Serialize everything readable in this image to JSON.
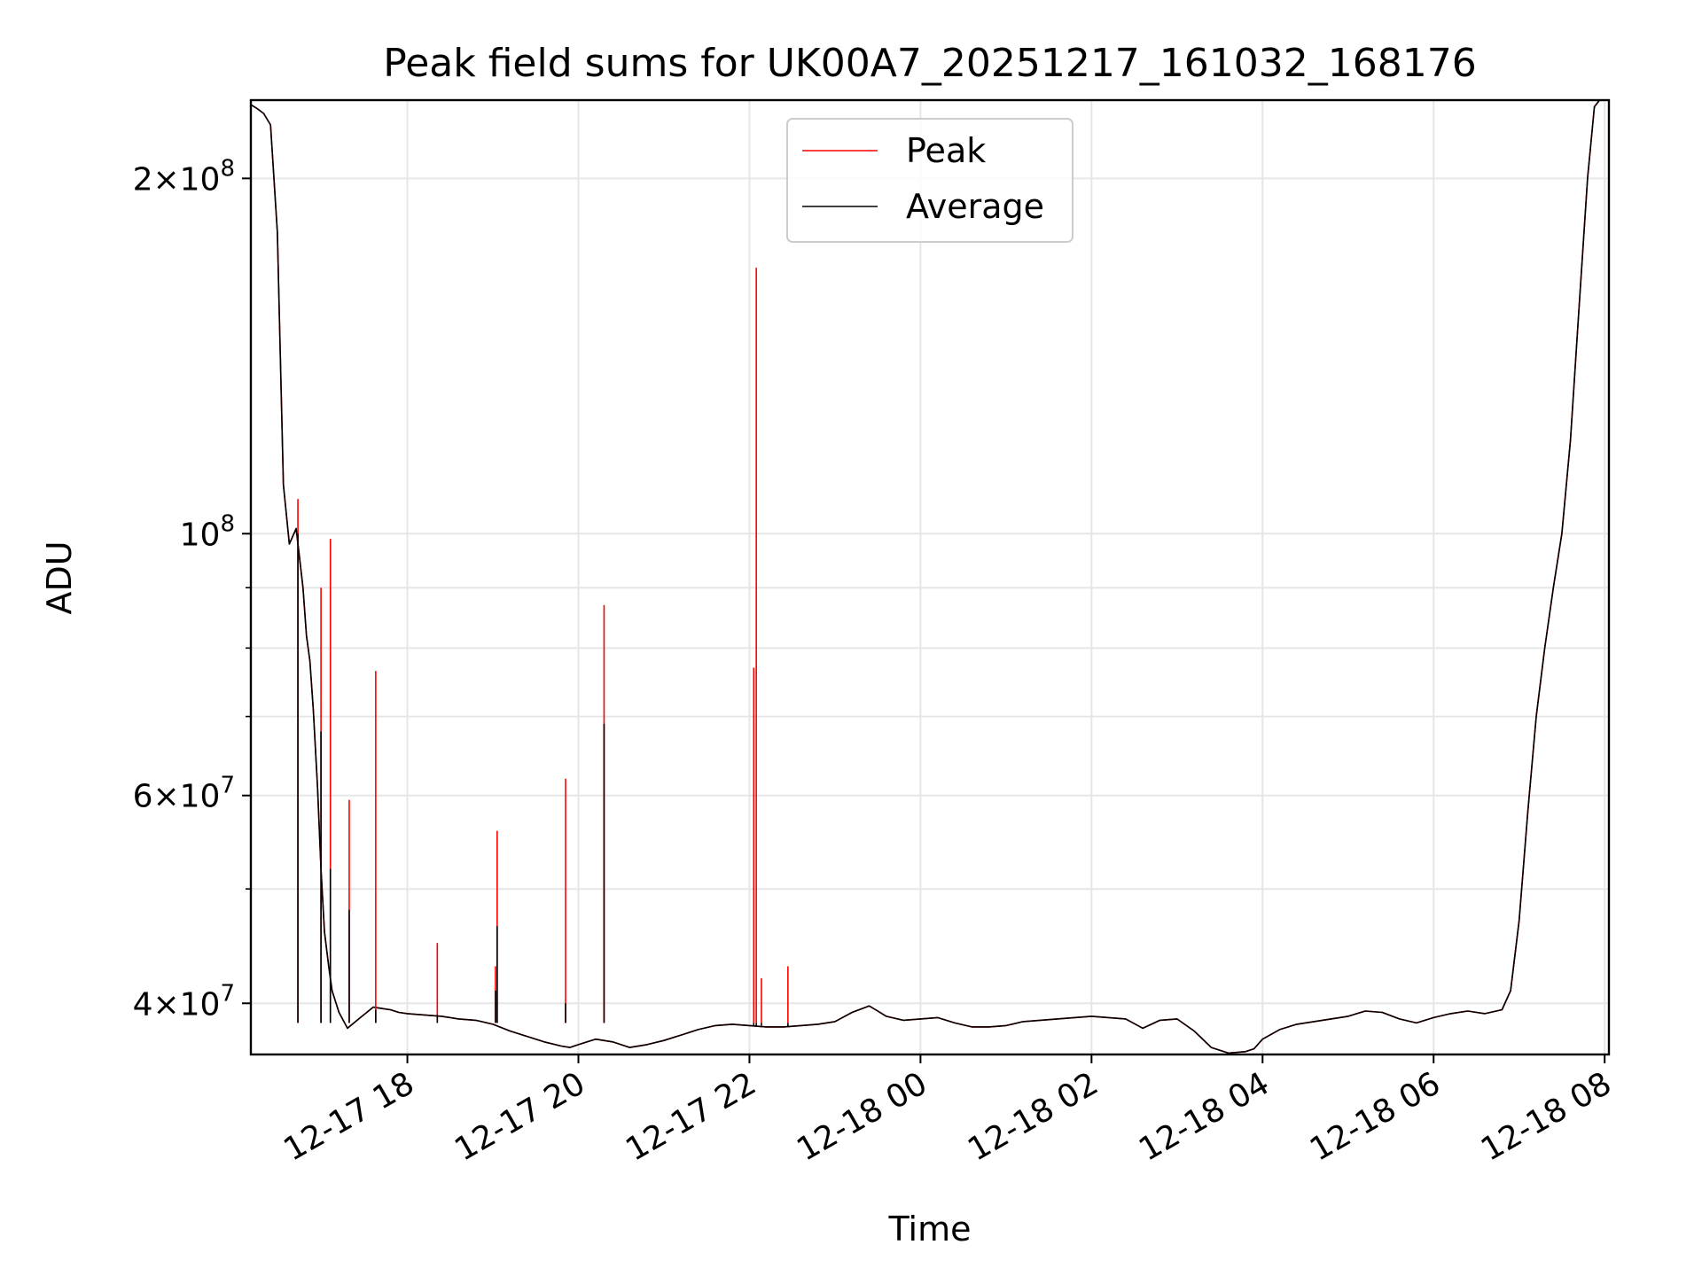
{
  "chart_data": {
    "type": "line",
    "title": "Peak field sums for UK00A7_20251217_161032_168176",
    "xlabel": "Time",
    "ylabel": "ADU",
    "yscale": "log",
    "ylim": [
      36200000,
      233000000
    ],
    "xlim_hours": [
      16.17,
      32.05
    ],
    "grid": true,
    "legend_location": "upper center",
    "x_ticks": [
      {
        "hour": 18,
        "label": "12-17 18"
      },
      {
        "hour": 20,
        "label": "12-17 20"
      },
      {
        "hour": 22,
        "label": "12-17 22"
      },
      {
        "hour": 24,
        "label": "12-18 00"
      },
      {
        "hour": 26,
        "label": "12-18 02"
      },
      {
        "hour": 28,
        "label": "12-18 04"
      },
      {
        "hour": 30,
        "label": "12-18 06"
      },
      {
        "hour": 32,
        "label": "12-18 08"
      }
    ],
    "y_ticks": [
      {
        "value": 40000000,
        "mantissa": "4×10",
        "exponent": "7"
      },
      {
        "value": 60000000,
        "mantissa": "6×10",
        "exponent": "7"
      },
      {
        "value": 100000000,
        "mantissa": "10",
        "exponent": "8"
      },
      {
        "value": 200000000,
        "mantissa": "2×10",
        "exponent": "8"
      }
    ],
    "y_minor_ticks": [
      50000000,
      70000000,
      80000000,
      90000000
    ],
    "series": [
      {
        "name": "Peak",
        "color": "#ff0000",
        "x_hours": [
          16.17,
          16.25,
          16.32,
          16.4,
          16.48,
          16.55,
          16.62,
          16.7,
          16.78,
          16.82,
          16.86,
          16.9,
          16.95,
          16.99,
          17.03,
          17.08,
          17.12,
          17.2,
          17.3,
          17.45,
          17.6,
          17.7,
          17.8,
          17.9,
          18.0,
          18.2,
          18.4,
          18.6,
          18.8,
          19.0,
          19.2,
          19.4,
          19.6,
          19.8,
          19.9,
          20.0,
          20.2,
          20.4,
          20.6,
          20.8,
          21.0,
          21.2,
          21.4,
          21.6,
          21.8,
          22.0,
          22.2,
          22.4,
          22.6,
          22.8,
          23.0,
          23.2,
          23.4,
          23.5,
          23.6,
          23.8,
          24.0,
          24.2,
          24.4,
          24.6,
          24.8,
          25.0,
          25.2,
          25.4,
          25.6,
          25.8,
          26.0,
          26.2,
          26.4,
          26.6,
          26.8,
          27.0,
          27.2,
          27.4,
          27.6,
          27.8,
          27.9,
          28.0,
          28.2,
          28.4,
          28.6,
          28.8,
          29.0,
          29.2,
          29.4,
          29.6,
          29.8,
          30.0,
          30.2,
          30.4,
          30.6,
          30.8,
          30.9,
          31.0,
          31.1,
          31.2,
          31.3,
          31.4,
          31.5,
          31.6,
          31.7,
          31.8,
          31.88,
          31.94
        ],
        "y_values": [
          231000000,
          229000000,
          227000000,
          222000000,
          180000000,
          110000000,
          98000000,
          101000000,
          90000000,
          82000000,
          78000000,
          71000000,
          61000000,
          52000000,
          46000000,
          43000000,
          41000000,
          39300000,
          38100000,
          38900000,
          39700000,
          39600000,
          39500000,
          39300000,
          39200000,
          39100000,
          39000000,
          38800000,
          38700000,
          38400000,
          37900000,
          37500000,
          37100000,
          36800000,
          36700000,
          36900000,
          37300000,
          37100000,
          36700000,
          36900000,
          37200000,
          37600000,
          38000000,
          38300000,
          38400000,
          38300000,
          38200000,
          38200000,
          38300000,
          38400000,
          38600000,
          39300000,
          39800000,
          39400000,
          39000000,
          38700000,
          38800000,
          38900000,
          38500000,
          38200000,
          38200000,
          38300000,
          38600000,
          38700000,
          38800000,
          38900000,
          39000000,
          38900000,
          38800000,
          38100000,
          38700000,
          38800000,
          37900000,
          36700000,
          36300000,
          36400000,
          36600000,
          37300000,
          38000000,
          38400000,
          38600000,
          38800000,
          39000000,
          39400000,
          39300000,
          38800000,
          38500000,
          38900000,
          39200000,
          39400000,
          39200000,
          39500000,
          41000000,
          47000000,
          58000000,
          70000000,
          80000000,
          90000000,
          100000000,
          120000000,
          155000000,
          200000000,
          230000000,
          233000000
        ]
      },
      {
        "name": "Average",
        "color": "#000000",
        "x_hours": [
          16.17,
          16.25,
          16.32,
          16.4,
          16.48,
          16.55,
          16.62,
          16.7,
          16.78,
          16.82,
          16.86,
          16.9,
          16.95,
          16.99,
          17.03,
          17.08,
          17.12,
          17.2,
          17.3,
          17.45,
          17.6,
          17.7,
          17.8,
          17.9,
          18.0,
          18.2,
          18.4,
          18.6,
          18.8,
          19.0,
          19.2,
          19.4,
          19.6,
          19.8,
          19.9,
          20.0,
          20.2,
          20.4,
          20.6,
          20.8,
          21.0,
          21.2,
          21.4,
          21.6,
          21.8,
          22.0,
          22.2,
          22.4,
          22.6,
          22.8,
          23.0,
          23.2,
          23.4,
          23.5,
          23.6,
          23.8,
          24.0,
          24.2,
          24.4,
          24.6,
          24.8,
          25.0,
          25.2,
          25.4,
          25.6,
          25.8,
          26.0,
          26.2,
          26.4,
          26.6,
          26.8,
          27.0,
          27.2,
          27.4,
          27.6,
          27.8,
          27.9,
          28.0,
          28.2,
          28.4,
          28.6,
          28.8,
          29.0,
          29.2,
          29.4,
          29.6,
          29.8,
          30.0,
          30.2,
          30.4,
          30.6,
          30.8,
          30.9,
          31.0,
          31.1,
          31.2,
          31.3,
          31.4,
          31.5,
          31.6,
          31.7,
          31.8,
          31.88,
          31.94
        ],
        "y_values": [
          231000000,
          229000000,
          227000000,
          222000000,
          180000000,
          110000000,
          98000000,
          101000000,
          90000000,
          82000000,
          78000000,
          71000000,
          61000000,
          52000000,
          46000000,
          43000000,
          41000000,
          39300000,
          38100000,
          38900000,
          39700000,
          39600000,
          39500000,
          39300000,
          39200000,
          39100000,
          39000000,
          38800000,
          38700000,
          38400000,
          37900000,
          37500000,
          37100000,
          36800000,
          36700000,
          36900000,
          37300000,
          37100000,
          36700000,
          36900000,
          37200000,
          37600000,
          38000000,
          38300000,
          38400000,
          38300000,
          38200000,
          38200000,
          38300000,
          38400000,
          38600000,
          39300000,
          39800000,
          39400000,
          39000000,
          38700000,
          38800000,
          38900000,
          38500000,
          38200000,
          38200000,
          38300000,
          38600000,
          38700000,
          38800000,
          38900000,
          39000000,
          38900000,
          38800000,
          38100000,
          38700000,
          38800000,
          37900000,
          36700000,
          36300000,
          36400000,
          36600000,
          37300000,
          38000000,
          38400000,
          38600000,
          38800000,
          39000000,
          39400000,
          39300000,
          38800000,
          38500000,
          38900000,
          39200000,
          39400000,
          39200000,
          39500000,
          41000000,
          47000000,
          58000000,
          70000000,
          80000000,
          90000000,
          100000000,
          120000000,
          155000000,
          200000000,
          230000000,
          233000000
        ]
      }
    ],
    "peak_spikes": [
      {
        "x_hour": 16.72,
        "peak": 107000000,
        "average": 100000000
      },
      {
        "x_hour": 16.99,
        "peak": 90000000,
        "average": 68000000
      },
      {
        "x_hour": 17.1,
        "peak": 99000000,
        "average": 52000000
      },
      {
        "x_hour": 17.32,
        "peak": 59500000,
        "average": 48000000
      },
      {
        "x_hour": 17.63,
        "peak": 76500000,
        "average": 39500000
      },
      {
        "x_hour": 18.35,
        "peak": 45000000,
        "average": 39100000
      },
      {
        "x_hour": 19.03,
        "peak": 43000000,
        "average": 41000000
      },
      {
        "x_hour": 19.05,
        "peak": 56000000,
        "average": 46500000
      },
      {
        "x_hour": 19.85,
        "peak": 62000000,
        "average": 40000000
      },
      {
        "x_hour": 20.3,
        "peak": 87000000,
        "average": 69000000
      },
      {
        "x_hour": 22.05,
        "peak": 77000000,
        "average": 38300000
      },
      {
        "x_hour": 22.08,
        "peak": 168000000,
        "average": 38300000
      },
      {
        "x_hour": 22.14,
        "peak": 42000000,
        "average": 38300000
      },
      {
        "x_hour": 22.45,
        "peak": 43000000,
        "average": 38200000
      }
    ]
  }
}
